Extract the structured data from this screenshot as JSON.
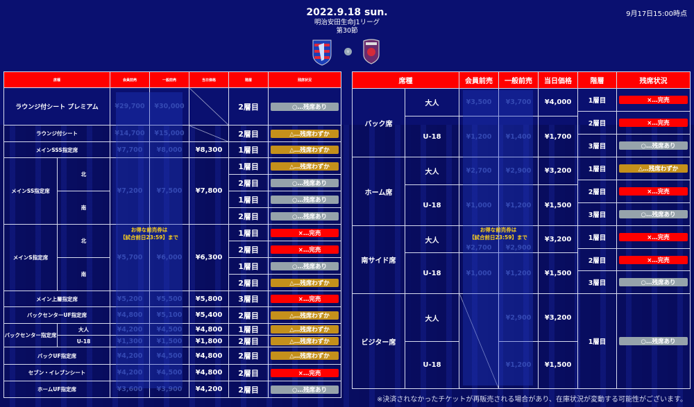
{
  "header": {
    "date": "2022.9.18 sun.",
    "league": "明治安田生命J1リーグ",
    "round": "第30節",
    "vs_label": "v",
    "as_of": "9月17日15:00時点"
  },
  "colors": {
    "sold": "#ff0000",
    "few": "#c4901b",
    "available": "#96a3ab",
    "header": "#ff0000",
    "background": "#0a1070"
  },
  "columns": [
    "席種",
    "会員前売",
    "一般前売",
    "当日価格",
    "階層",
    "残席状況"
  ],
  "promo": {
    "line1": "お得な前売券は",
    "line2": "【試合前日23:59】まで"
  },
  "left": {
    "sections": [
      {
        "seat": "ラウンジ付シート プレミアム",
        "member": "¥29,700",
        "general": "¥30,000",
        "day": null,
        "floors": [
          {
            "floor": "2層目",
            "status": "○…残席あり",
            "type": "available"
          }
        ]
      },
      {
        "seat": "ラウンジ付シート",
        "member": "¥14,700",
        "general": "¥15,000",
        "day": null,
        "floors": [
          {
            "floor": "2層目",
            "status": "△…残席わずか",
            "type": "few"
          }
        ]
      },
      {
        "seat": "メインSSS指定席",
        "member": "¥7,700",
        "general": "¥8,000",
        "day": "¥8,300",
        "floors": [
          {
            "floor": "1層目",
            "status": "△…残席わずか",
            "type": "few"
          }
        ]
      },
      {
        "seat": "メインSS指定席",
        "member": "¥7,200",
        "general": "¥7,500",
        "day": "¥7,800",
        "subs": [
          {
            "name": "北",
            "floors": [
              {
                "floor": "1層目",
                "status": "△…残席わずか",
                "type": "few"
              },
              {
                "floor": "2層目",
                "status": "○…残席あり",
                "type": "available"
              }
            ]
          },
          {
            "name": "南",
            "floors": [
              {
                "floor": "1層目",
                "status": "○…残席あり",
                "type": "available"
              },
              {
                "floor": "2層目",
                "status": "○…残席あり",
                "type": "available"
              }
            ]
          }
        ]
      },
      {
        "seat": "メインS指定席",
        "member": "¥5,700",
        "general": "¥6,000",
        "day": "¥6,300",
        "subs": [
          {
            "name": "北",
            "floors": [
              {
                "floor": "1層目",
                "status": "×…完売",
                "type": "sold"
              },
              {
                "floor": "2層目",
                "status": "×…完売",
                "type": "sold"
              }
            ]
          },
          {
            "name": "南",
            "floors": [
              {
                "floor": "1層目",
                "status": "○…残席あり",
                "type": "available"
              },
              {
                "floor": "2層目",
                "status": "△…残席わずか",
                "type": "few"
              }
            ]
          }
        ]
      },
      {
        "seat": "メイン上層指定席",
        "member": "¥5,200",
        "general": "¥5,500",
        "day": "¥5,800",
        "floors": [
          {
            "floor": "3層目",
            "status": "×…完売",
            "type": "sold"
          }
        ]
      },
      {
        "seat": "バックセンターUF指定席",
        "member": "¥4,800",
        "general": "¥5,100",
        "day": "¥5,400",
        "floors": [
          {
            "floor": "2層目",
            "status": "△…残席わずか",
            "type": "few"
          }
        ]
      },
      {
        "seat": "バックセンター指定席",
        "subs": [
          {
            "name": "大人",
            "member": "¥4,200",
            "general": "¥4,500",
            "day": "¥4,800",
            "floors": [
              {
                "floor": "1層目",
                "status": "△…残席わずか",
                "type": "few"
              }
            ]
          },
          {
            "name": "U-18",
            "member": "¥1,300",
            "general": "¥1,500",
            "day": "¥1,800",
            "floors": [
              {
                "floor": "2層目",
                "status": "△…残席わずか",
                "type": "few"
              }
            ]
          }
        ]
      },
      {
        "seat": "バックUF指定席",
        "member": "¥4,200",
        "general": "¥4,500",
        "day": "¥4,800",
        "floors": [
          {
            "floor": "2層目",
            "status": "△…残席わずか",
            "type": "few"
          }
        ]
      },
      {
        "seat": "セブン・イレブンシート",
        "member": "¥4,200",
        "general": "¥4,500",
        "day": "¥4,800",
        "floors": [
          {
            "floor": "2層目",
            "status": "×…完売",
            "type": "sold"
          }
        ]
      },
      {
        "seat": "ホームUF指定席",
        "member": "¥3,600",
        "general": "¥3,900",
        "day": "¥4,200",
        "floors": [
          {
            "floor": "2層目",
            "status": "○…残席あり",
            "type": "available"
          }
        ]
      }
    ]
  },
  "right": {
    "sections": [
      {
        "seat": "バック席",
        "subs": [
          {
            "name": "大人",
            "member": "¥3,500",
            "general": "¥3,700",
            "day": "¥4,000"
          },
          {
            "name": "U-18",
            "member": "¥1,200",
            "general": "¥1,400",
            "day": "¥1,700"
          }
        ],
        "floors": [
          {
            "floor": "1層目",
            "status": "×…完売",
            "type": "sold"
          },
          {
            "floor": "2層目",
            "status": "×…完売",
            "type": "sold"
          },
          {
            "floor": "3層目",
            "status": "○…残席あり",
            "type": "available"
          }
        ]
      },
      {
        "seat": "ホーム席",
        "subs": [
          {
            "name": "大人",
            "member": "¥2,700",
            "general": "¥2,900",
            "day": "¥3,200"
          },
          {
            "name": "U-18",
            "member": "¥1,000",
            "general": "¥1,200",
            "day": "¥1,500"
          }
        ],
        "floors": [
          {
            "floor": "1層目",
            "status": "△…残席わずか",
            "type": "few"
          },
          {
            "floor": "2層目",
            "status": "×…完売",
            "type": "sold"
          },
          {
            "floor": "3層目",
            "status": "○…残席あり",
            "type": "available"
          }
        ]
      },
      {
        "seat": "南サイド席",
        "subs": [
          {
            "name": "大人",
            "member": "¥2,700",
            "general": "¥2,900",
            "day": "¥3,200"
          },
          {
            "name": "U-18",
            "member": "¥1,000",
            "general": "¥1,200",
            "day": "¥1,500"
          }
        ],
        "floors": [
          {
            "floor": "1層目",
            "status": "×…完売",
            "type": "sold"
          },
          {
            "floor": "2層目",
            "status": "×…完売",
            "type": "sold"
          },
          {
            "floor": "3層目",
            "status": "○…残席あり",
            "type": "available"
          }
        ]
      },
      {
        "seat": "ビジター席",
        "subs": [
          {
            "name": "大人",
            "member": null,
            "general": "¥2,900",
            "day": "¥3,200"
          },
          {
            "name": "U-18",
            "member": null,
            "general": "¥1,200",
            "day": "¥1,500"
          }
        ],
        "floors": [
          {
            "floor": "1層目",
            "status": "○…残席あり",
            "type": "available"
          }
        ]
      }
    ]
  },
  "note": "※決済されなかったチケットが再販売される場合があり、在庫状況が変動する可能性がございます。"
}
